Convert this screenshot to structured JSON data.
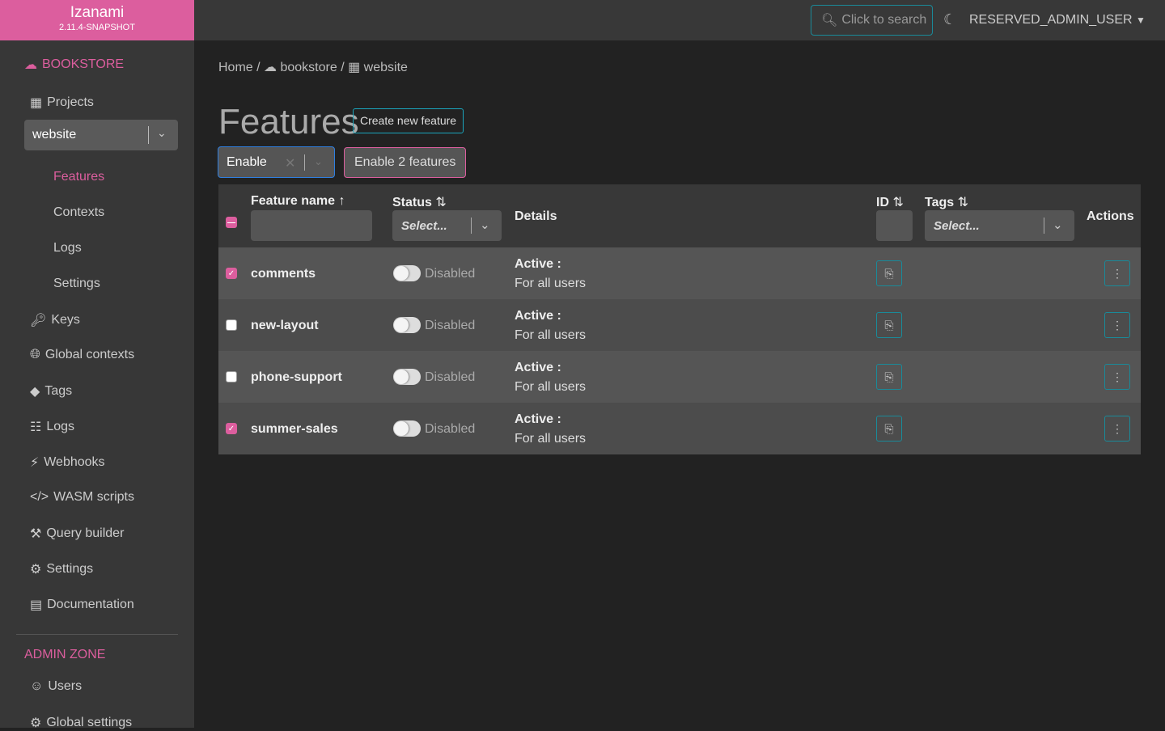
{
  "app": {
    "title": "Izanami",
    "version": "2.11.4-SNAPSHOT"
  },
  "topbar": {
    "search_label": "Click to search",
    "user": "RESERVED_ADMIN_USER"
  },
  "sidebar": {
    "tenant": "BOOKSTORE",
    "projects_label": "Projects",
    "project_select": "website",
    "project_items": [
      {
        "label": "Features",
        "active": true
      },
      {
        "label": "Contexts"
      },
      {
        "label": "Logs"
      },
      {
        "label": "Settings"
      }
    ],
    "items": [
      {
        "label": "Keys",
        "icon": "key-icon"
      },
      {
        "label": "Global contexts",
        "icon": "globe-icon"
      },
      {
        "label": "Tags",
        "icon": "tag-icon"
      },
      {
        "label": "Logs",
        "icon": "network-icon"
      },
      {
        "label": "Webhooks",
        "icon": "plug-icon"
      },
      {
        "label": "WASM scripts",
        "icon": "code-icon"
      },
      {
        "label": "Query builder",
        "icon": "hammer-icon"
      },
      {
        "label": "Settings",
        "icon": "gear-icon"
      },
      {
        "label": "Documentation",
        "icon": "book-icon"
      }
    ],
    "admin_label": "ADMIN ZONE",
    "admin_items": [
      {
        "label": "Users",
        "icon": "user-icon"
      },
      {
        "label": "Global settings",
        "icon": "gear-icon"
      }
    ]
  },
  "breadcrumb": {
    "home": "Home",
    "tenant": "bookstore",
    "project": "website"
  },
  "main": {
    "title": "Features",
    "create_label": "Create new feature",
    "bulk_action": "Enable",
    "bulk_button": "Enable 2 features"
  },
  "table": {
    "headers": {
      "name": "Feature name",
      "status": "Status",
      "details": "Details",
      "id": "ID",
      "tags": "Tags",
      "actions": "Actions"
    },
    "select_placeholder": "Select...",
    "rows": [
      {
        "name": "comments",
        "checked": true,
        "status": "Disabled",
        "details_title": "Active :",
        "details": "For all users"
      },
      {
        "name": "new-layout",
        "checked": false,
        "status": "Disabled",
        "details_title": "Active :",
        "details": "For all users"
      },
      {
        "name": "phone-support",
        "checked": false,
        "status": "Disabled",
        "details_title": "Active :",
        "details": "For all users"
      },
      {
        "name": "summer-sales",
        "checked": true,
        "status": "Disabled",
        "details_title": "Active :",
        "details": "For all users"
      }
    ]
  },
  "colors": {
    "accent": "#dc5e9e",
    "teal": "#1a8a99"
  }
}
